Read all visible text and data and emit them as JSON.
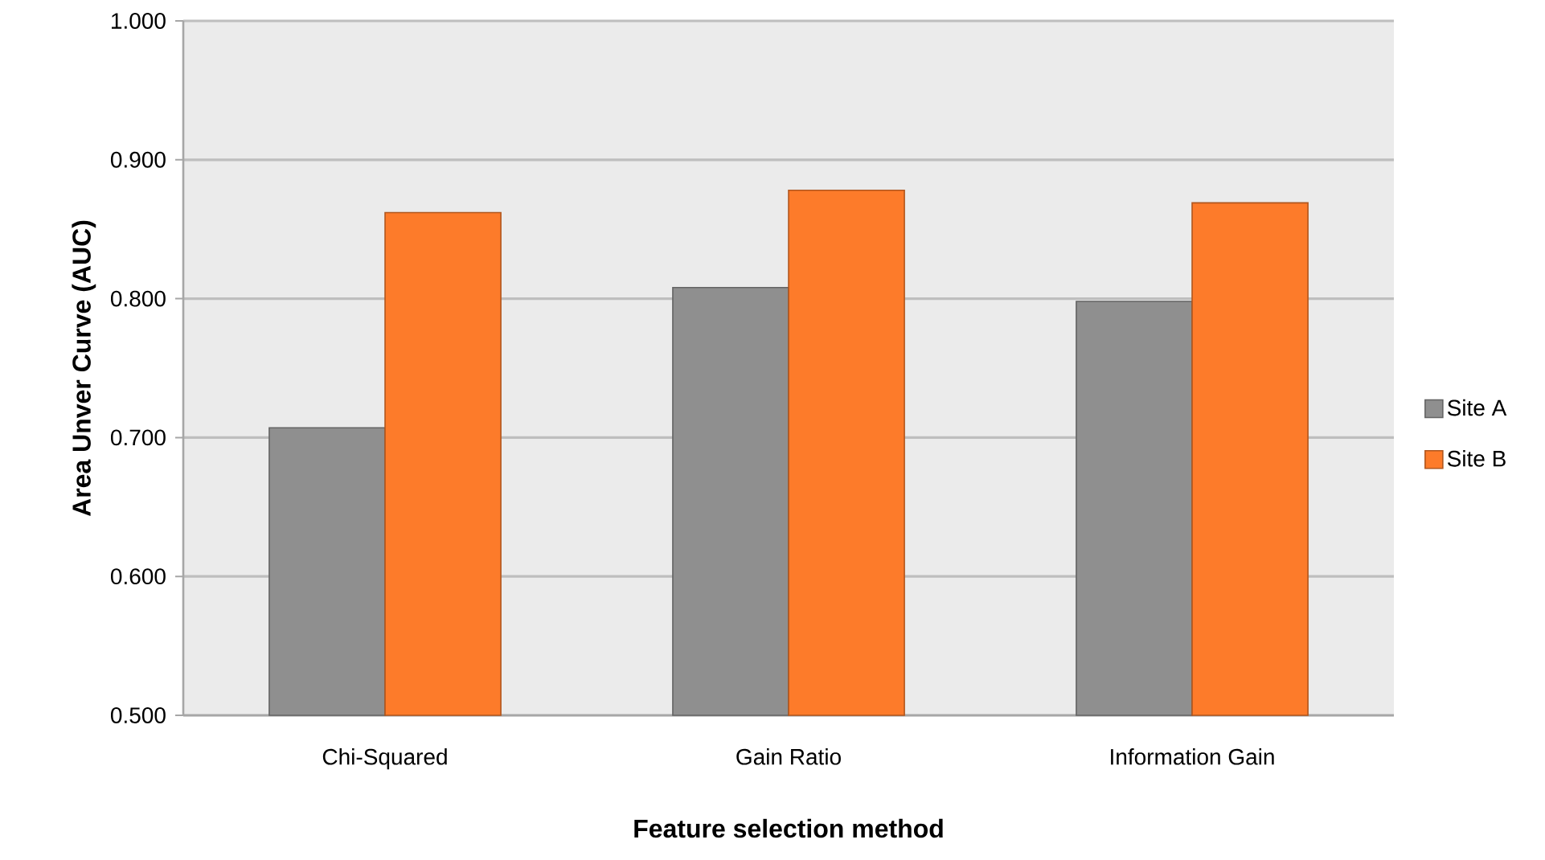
{
  "chart_data": {
    "type": "bar",
    "categories": [
      "Chi-Squared",
      "Gain Ratio",
      "Information Gain"
    ],
    "series": [
      {
        "name": "Site A",
        "color": "#8f8f8f",
        "values": [
          0.707,
          0.808,
          0.798
        ]
      },
      {
        "name": "Site B",
        "color": "#fd7b2a",
        "values": [
          0.862,
          0.878,
          0.869
        ]
      }
    ],
    "xlabel": "Feature selection method",
    "ylabel": "Area Unver Curve (AUC)",
    "ylim": [
      0.5,
      1.0
    ],
    "yticks": [
      {
        "value": 0.5,
        "label": "0.500"
      },
      {
        "value": 0.6,
        "label": "0.600"
      },
      {
        "value": 0.7,
        "label": "0.700"
      },
      {
        "value": 0.8,
        "label": "0.800"
      },
      {
        "value": 0.9,
        "label": "0.900"
      },
      {
        "value": 1.0,
        "label": "1.000"
      }
    ],
    "grid": "y",
    "legend": "right"
  }
}
